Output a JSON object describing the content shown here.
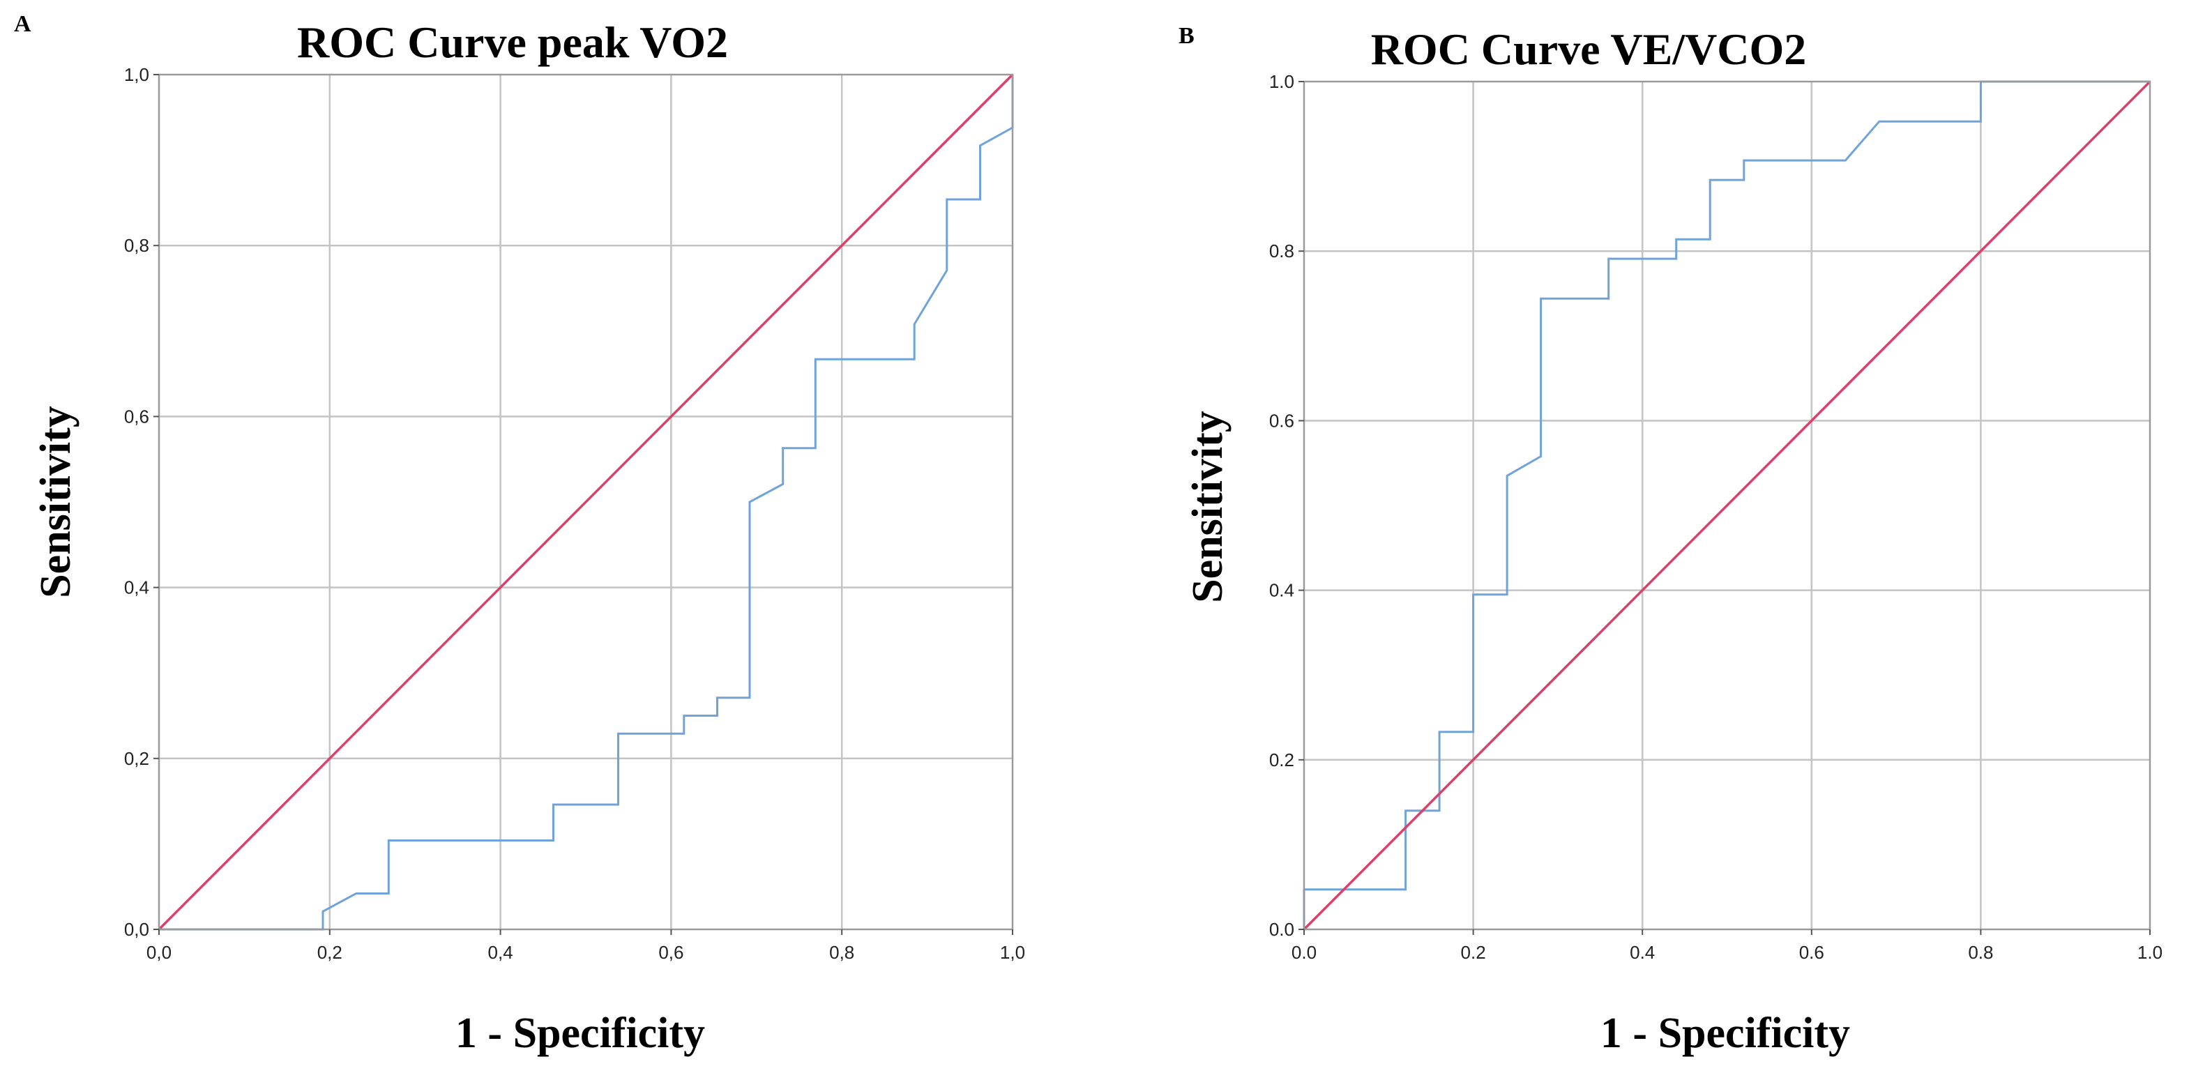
{
  "chart_data": [
    {
      "type": "line",
      "panel_label": "A",
      "title": "ROC Curve peak VO2",
      "xlabel": "1 - Specificity",
      "ylabel": "Sensitivity",
      "xlim": [
        0,
        1
      ],
      "ylim": [
        0,
        1
      ],
      "grid": true,
      "x_ticks": [
        "0,0",
        "0,2",
        "0,4",
        "0,6",
        "0,8",
        "1,0"
      ],
      "y_ticks": [
        "0,0",
        "0,2",
        "0,4",
        "0,6",
        "0,8",
        "1,0"
      ],
      "series": [
        {
          "name": "ROC curve",
          "color": "#6fa3d9",
          "points": [
            [
              0,
              0
            ],
            [
              0.192,
              0
            ],
            [
              0.192,
              0.021
            ],
            [
              0.231,
              0.042
            ],
            [
              0.269,
              0.042
            ],
            [
              0.269,
              0.104
            ],
            [
              0.462,
              0.104
            ],
            [
              0.462,
              0.146
            ],
            [
              0.538,
              0.146
            ],
            [
              0.538,
              0.229
            ],
            [
              0.615,
              0.229
            ],
            [
              0.615,
              0.25
            ],
            [
              0.654,
              0.25
            ],
            [
              0.654,
              0.271
            ],
            [
              0.692,
              0.271
            ],
            [
              0.692,
              0.5
            ],
            [
              0.731,
              0.521
            ],
            [
              0.731,
              0.563
            ],
            [
              0.769,
              0.563
            ],
            [
              0.769,
              0.667
            ],
            [
              0.885,
              0.667
            ],
            [
              0.885,
              0.708
            ],
            [
              0.923,
              0.771
            ],
            [
              0.923,
              0.854
            ],
            [
              0.962,
              0.854
            ],
            [
              0.962,
              0.917
            ],
            [
              1,
              0.938
            ],
            [
              1,
              1
            ]
          ]
        },
        {
          "name": "Reference line",
          "color": "#d9416a",
          "points": [
            [
              0,
              0
            ],
            [
              1,
              1
            ]
          ]
        }
      ]
    },
    {
      "type": "line",
      "panel_label": "B",
      "title": "ROC Curve VE/VCO2",
      "xlabel": "1 - Specificity",
      "ylabel": "Sensitivity",
      "xlim": [
        0,
        1
      ],
      "ylim": [
        0,
        1
      ],
      "grid": true,
      "x_ticks": [
        "0.0",
        "0.2",
        "0.4",
        "0.6",
        "0.8",
        "1.0"
      ],
      "y_ticks": [
        "0.0",
        "0.2",
        "0.4",
        "0.6",
        "0.8",
        "1.0"
      ],
      "series": [
        {
          "name": "ROC curve",
          "color": "#6fa3d9",
          "points": [
            [
              0,
              0
            ],
            [
              0,
              0.047
            ],
            [
              0.12,
              0.047
            ],
            [
              0.12,
              0.14
            ],
            [
              0.16,
              0.14
            ],
            [
              0.16,
              0.233
            ],
            [
              0.2,
              0.233
            ],
            [
              0.2,
              0.395
            ],
            [
              0.24,
              0.395
            ],
            [
              0.24,
              0.535
            ],
            [
              0.28,
              0.558
            ],
            [
              0.28,
              0.744
            ],
            [
              0.36,
              0.744
            ],
            [
              0.36,
              0.791
            ],
            [
              0.44,
              0.791
            ],
            [
              0.44,
              0.814
            ],
            [
              0.48,
              0.814
            ],
            [
              0.48,
              0.884
            ],
            [
              0.52,
              0.884
            ],
            [
              0.52,
              0.907
            ],
            [
              0.64,
              0.907
            ],
            [
              0.68,
              0.953
            ],
            [
              0.8,
              0.953
            ],
            [
              0.8,
              1
            ],
            [
              1,
              1
            ]
          ]
        },
        {
          "name": "Reference line",
          "color": "#d9416a",
          "points": [
            [
              0,
              0
            ],
            [
              1,
              1
            ]
          ]
        }
      ]
    }
  ]
}
